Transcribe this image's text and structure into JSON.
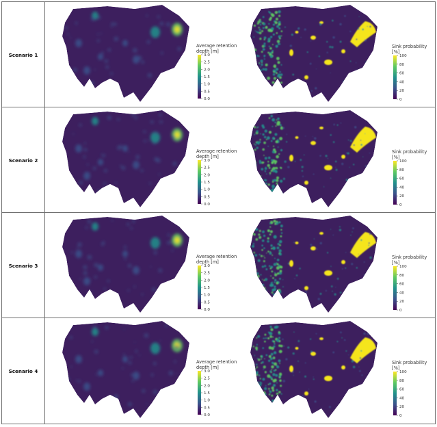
{
  "figure": {
    "rows": [
      {
        "label": "Scenario 1"
      },
      {
        "label": "Scenario 2"
      },
      {
        "label": "Scenario 3"
      },
      {
        "label": "Scenario 4"
      }
    ],
    "left_colorbar": {
      "title_line1": "Average retention",
      "title_line2": "depth [m]",
      "ticks": [
        "3.0",
        "2.5",
        "2.0",
        "1.5",
        "1.0",
        "0.5",
        "0.0"
      ]
    },
    "right_colorbar": {
      "title_line1": "Sink probability",
      "title_line2": "[%]",
      "ticks": [
        "100",
        "80",
        "60",
        "40",
        "20",
        "0"
      ]
    },
    "colors": {
      "background_purple": "#3d1f5e",
      "viridis": [
        "#440154",
        "#3b528b",
        "#21918c",
        "#5ec962",
        "#fde725"
      ],
      "sink_yellow": "#f5e51d"
    }
  }
}
